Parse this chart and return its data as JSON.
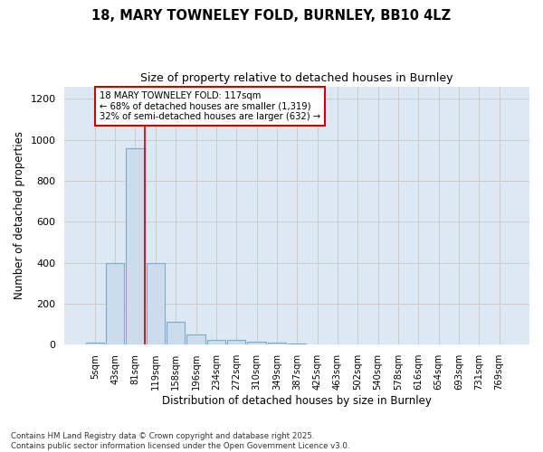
{
  "title_line1": "18, MARY TOWNELEY FOLD, BURNLEY, BB10 4LZ",
  "title_line2": "Size of property relative to detached houses in Burnley",
  "xlabel": "Distribution of detached houses by size in Burnley",
  "ylabel": "Number of detached properties",
  "bin_labels": [
    "5sqm",
    "43sqm",
    "81sqm",
    "119sqm",
    "158sqm",
    "196sqm",
    "234sqm",
    "272sqm",
    "310sqm",
    "349sqm",
    "387sqm",
    "425sqm",
    "463sqm",
    "502sqm",
    "540sqm",
    "578sqm",
    "616sqm",
    "654sqm",
    "693sqm",
    "731sqm",
    "769sqm"
  ],
  "bar_values": [
    10,
    397,
    958,
    397,
    110,
    50,
    22,
    22,
    15,
    12,
    7,
    0,
    0,
    0,
    0,
    0,
    0,
    0,
    0,
    0,
    0
  ],
  "bar_color": "#ccdcec",
  "bar_edge_color": "#7aaacc",
  "property_size_sqm": 117,
  "property_bin_index": 2,
  "annotation_title": "18 MARY TOWNELEY FOLD: 117sqm",
  "annotation_line2": "← 68% of detached houses are smaller (1,319)",
  "annotation_line3": "32% of semi-detached houses are larger (632) →",
  "red_line_color": "#cc0000",
  "annotation_box_color": "#ffffff",
  "annotation_box_edge_color": "#cc0000",
  "grid_color": "#cccccc",
  "background_color": "#dce8f4",
  "ylim": [
    0,
    1260
  ],
  "yticks": [
    0,
    200,
    400,
    600,
    800,
    1000,
    1200
  ],
  "footer_line1": "Contains HM Land Registry data © Crown copyright and database right 2025.",
  "footer_line2": "Contains public sector information licensed under the Open Government Licence v3.0."
}
